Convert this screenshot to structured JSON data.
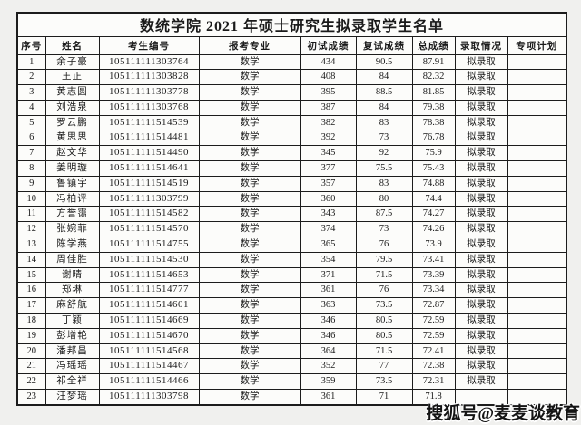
{
  "page": {
    "title": "数统学院 2021 年硕士研究生拟录取学生名单",
    "watermark": "搜狐号@麦麦谈教育"
  },
  "table": {
    "headers": [
      "序号",
      "姓名",
      "考生编号",
      "报考专业",
      "初试成绩",
      "复试成绩",
      "总成绩",
      "录取情况",
      "专项计划"
    ],
    "rows": [
      [
        "1",
        "余子豪",
        "105111111303764",
        "数学",
        "434",
        "90.5",
        "87.91",
        "拟录取",
        ""
      ],
      [
        "2",
        "王正",
        "105111111303828",
        "数学",
        "408",
        "84",
        "82.32",
        "拟录取",
        ""
      ],
      [
        "3",
        "黄志圆",
        "105111111303778",
        "数学",
        "395",
        "88.5",
        "81.85",
        "拟录取",
        ""
      ],
      [
        "4",
        "刘浩泉",
        "105111111303768",
        "数学",
        "387",
        "84",
        "79.38",
        "拟录取",
        ""
      ],
      [
        "5",
        "罗云鹏",
        "105111111514539",
        "数学",
        "382",
        "83",
        "78.38",
        "拟录取",
        ""
      ],
      [
        "6",
        "黄思思",
        "105111111514481",
        "数学",
        "392",
        "73",
        "76.78",
        "拟录取",
        ""
      ],
      [
        "7",
        "赵文华",
        "105111111514490",
        "数学",
        "345",
        "92",
        "75.9",
        "拟录取",
        ""
      ],
      [
        "8",
        "姜明璇",
        "105111111514641",
        "数学",
        "377",
        "75.5",
        "75.43",
        "拟录取",
        ""
      ],
      [
        "9",
        "鲁镇宇",
        "105111111514519",
        "数学",
        "357",
        "83",
        "74.88",
        "拟录取",
        ""
      ],
      [
        "10",
        "冯柏评",
        "105111111303799",
        "数学",
        "360",
        "80",
        "74.4",
        "拟录取",
        ""
      ],
      [
        "11",
        "方誉霭",
        "105111111514582",
        "数学",
        "343",
        "87.5",
        "74.27",
        "拟录取",
        ""
      ],
      [
        "12",
        "张婉菲",
        "105111111514570",
        "数学",
        "374",
        "73",
        "74.26",
        "拟录取",
        ""
      ],
      [
        "13",
        "陈学燕",
        "105111111514755",
        "数学",
        "365",
        "76",
        "73.9",
        "拟录取",
        ""
      ],
      [
        "14",
        "周佳胜",
        "105111111514530",
        "数学",
        "354",
        "79.5",
        "73.41",
        "拟录取",
        ""
      ],
      [
        "15",
        "谢晴",
        "105111111514653",
        "数学",
        "371",
        "71.5",
        "73.39",
        "拟录取",
        ""
      ],
      [
        "16",
        "郑琳",
        "105111111514777",
        "数学",
        "361",
        "76",
        "73.34",
        "拟录取",
        ""
      ],
      [
        "17",
        "麻舒航",
        "105111111514601",
        "数学",
        "363",
        "73.5",
        "72.87",
        "拟录取",
        ""
      ],
      [
        "18",
        "丁颖",
        "105111111514669",
        "数学",
        "346",
        "80.5",
        "72.59",
        "拟录取",
        ""
      ],
      [
        "19",
        "彭增艳",
        "105111111514670",
        "数学",
        "346",
        "80.5",
        "72.59",
        "拟录取",
        ""
      ],
      [
        "20",
        "潘邦昌",
        "105111111514568",
        "数学",
        "364",
        "71.5",
        "72.41",
        "拟录取",
        ""
      ],
      [
        "21",
        "冯瑶瑶",
        "105111111514467",
        "数学",
        "352",
        "77",
        "72.38",
        "拟录取",
        ""
      ],
      [
        "22",
        "祁全祥",
        "105111111514466",
        "数学",
        "359",
        "73.5",
        "72.31",
        "拟录取",
        ""
      ],
      [
        "23",
        "汪梦瑶",
        "105111111303798",
        "数学",
        "361",
        "71",
        "71.8",
        "",
        ""
      ]
    ]
  },
  "colors": {
    "page_background": "#f0f0ee",
    "cell_background": "#fcfcfa",
    "border": "#1c1c1c",
    "text": "#1a1a1a"
  }
}
